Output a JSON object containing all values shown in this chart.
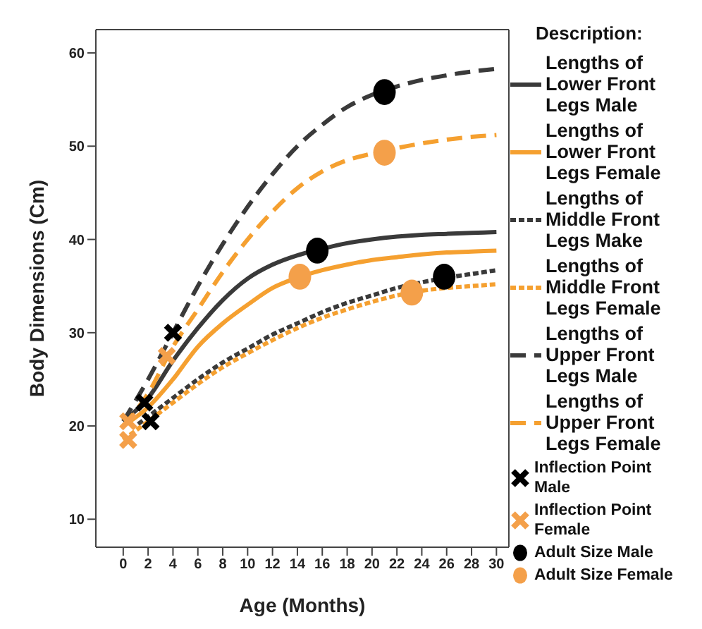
{
  "chart_data": {
    "type": "line",
    "xlabel": "Age (Months)",
    "ylabel": "Body Dimensions (Cm)",
    "legend_title": "Description:",
    "legend": "right",
    "marker": "none",
    "xlim": [
      -2.2,
      31
    ],
    "xticks": [
      0,
      2,
      4,
      6,
      8,
      10,
      12,
      14,
      16,
      18,
      20,
      22,
      24,
      26,
      28,
      30
    ],
    "ylim": [
      7,
      62.5
    ],
    "yticks": [
      10,
      20,
      30,
      40,
      50,
      60
    ],
    "x": [
      0,
      2,
      4,
      6,
      8,
      10,
      12,
      14,
      16,
      18,
      20,
      22,
      24,
      26,
      28,
      30
    ],
    "series": [
      {
        "name": "Lengths of Lower Front Legs Male",
        "color": "#3a3a3a",
        "line_style": "solid",
        "values": [
          20.5,
          23,
          27,
          30.5,
          33.5,
          35.8,
          37.3,
          38.3,
          39,
          39.6,
          40,
          40.3,
          40.5,
          40.6,
          40.7,
          40.8
        ]
      },
      {
        "name": "Lengths of Lower Front Legs Female",
        "color": "#f5a030",
        "line_style": "solid",
        "values": [
          20,
          22,
          25,
          28.5,
          31,
          33,
          34.8,
          35.9,
          36.7,
          37.3,
          37.8,
          38.1,
          38.4,
          38.6,
          38.7,
          38.8
        ]
      },
      {
        "name": "Lengths of Middle Front Legs Make",
        "color": "#3a3a3a",
        "line_style": "dotted",
        "x": [
          1.2,
          2,
          4,
          6,
          8,
          10,
          12,
          14,
          16,
          18,
          20,
          22,
          24,
          26,
          28,
          30
        ],
        "values": [
          20.2,
          21,
          23,
          25,
          26.8,
          28.3,
          29.8,
          31,
          32.2,
          33.2,
          34,
          34.8,
          35.4,
          35.9,
          36.3,
          36.7
        ]
      },
      {
        "name": "Lengths of Middle Front Legs Female",
        "color": "#f5a030",
        "line_style": "dotted",
        "values": [
          18.5,
          20.5,
          22.5,
          24.5,
          26.3,
          27.8,
          29.2,
          30.5,
          31.6,
          32.5,
          33.3,
          34,
          34.5,
          34.8,
          35,
          35.2
        ]
      },
      {
        "name": "Lengths of Upper Front Legs Male",
        "color": "#3a3a3a",
        "line_style": "dashed",
        "values": [
          20.5,
          25,
          30,
          35,
          39.5,
          43.5,
          47,
          50,
          52.3,
          54.2,
          55.5,
          56.4,
          57.1,
          57.6,
          58,
          58.3
        ]
      },
      {
        "name": "Lengths of Upper Front Legs Female",
        "color": "#f5a030",
        "line_style": "dashed",
        "values": [
          20,
          23.5,
          28.5,
          32.5,
          36.5,
          40,
          43,
          45.5,
          47.3,
          48.5,
          49.2,
          49.8,
          50.3,
          50.7,
          51,
          51.2
        ]
      },
      {
        "name": "Inflection Point Male",
        "type": "scatter",
        "marker": "cross",
        "color": "#000000",
        "x": [
          1.7,
          2.2,
          4
        ],
        "values": [
          22.5,
          20.5,
          30
        ]
      },
      {
        "name": "Inflection Point Female",
        "type": "scatter",
        "marker": "cross",
        "color": "#f4a04a",
        "x": [
          0.4,
          0.4,
          3.5
        ],
        "values": [
          20.5,
          18.5,
          27.5
        ]
      },
      {
        "name": "Adult Size Male",
        "type": "scatter",
        "marker": "circle",
        "color": "#000000",
        "x": [
          15.6,
          21,
          25.8
        ],
        "values": [
          38.8,
          55.8,
          36
        ]
      },
      {
        "name": "Adult Size Female",
        "type": "scatter",
        "marker": "circle",
        "color": "#f4a04a",
        "x": [
          14.2,
          21,
          23.2
        ],
        "values": [
          36,
          49.3,
          34.3
        ]
      }
    ]
  }
}
